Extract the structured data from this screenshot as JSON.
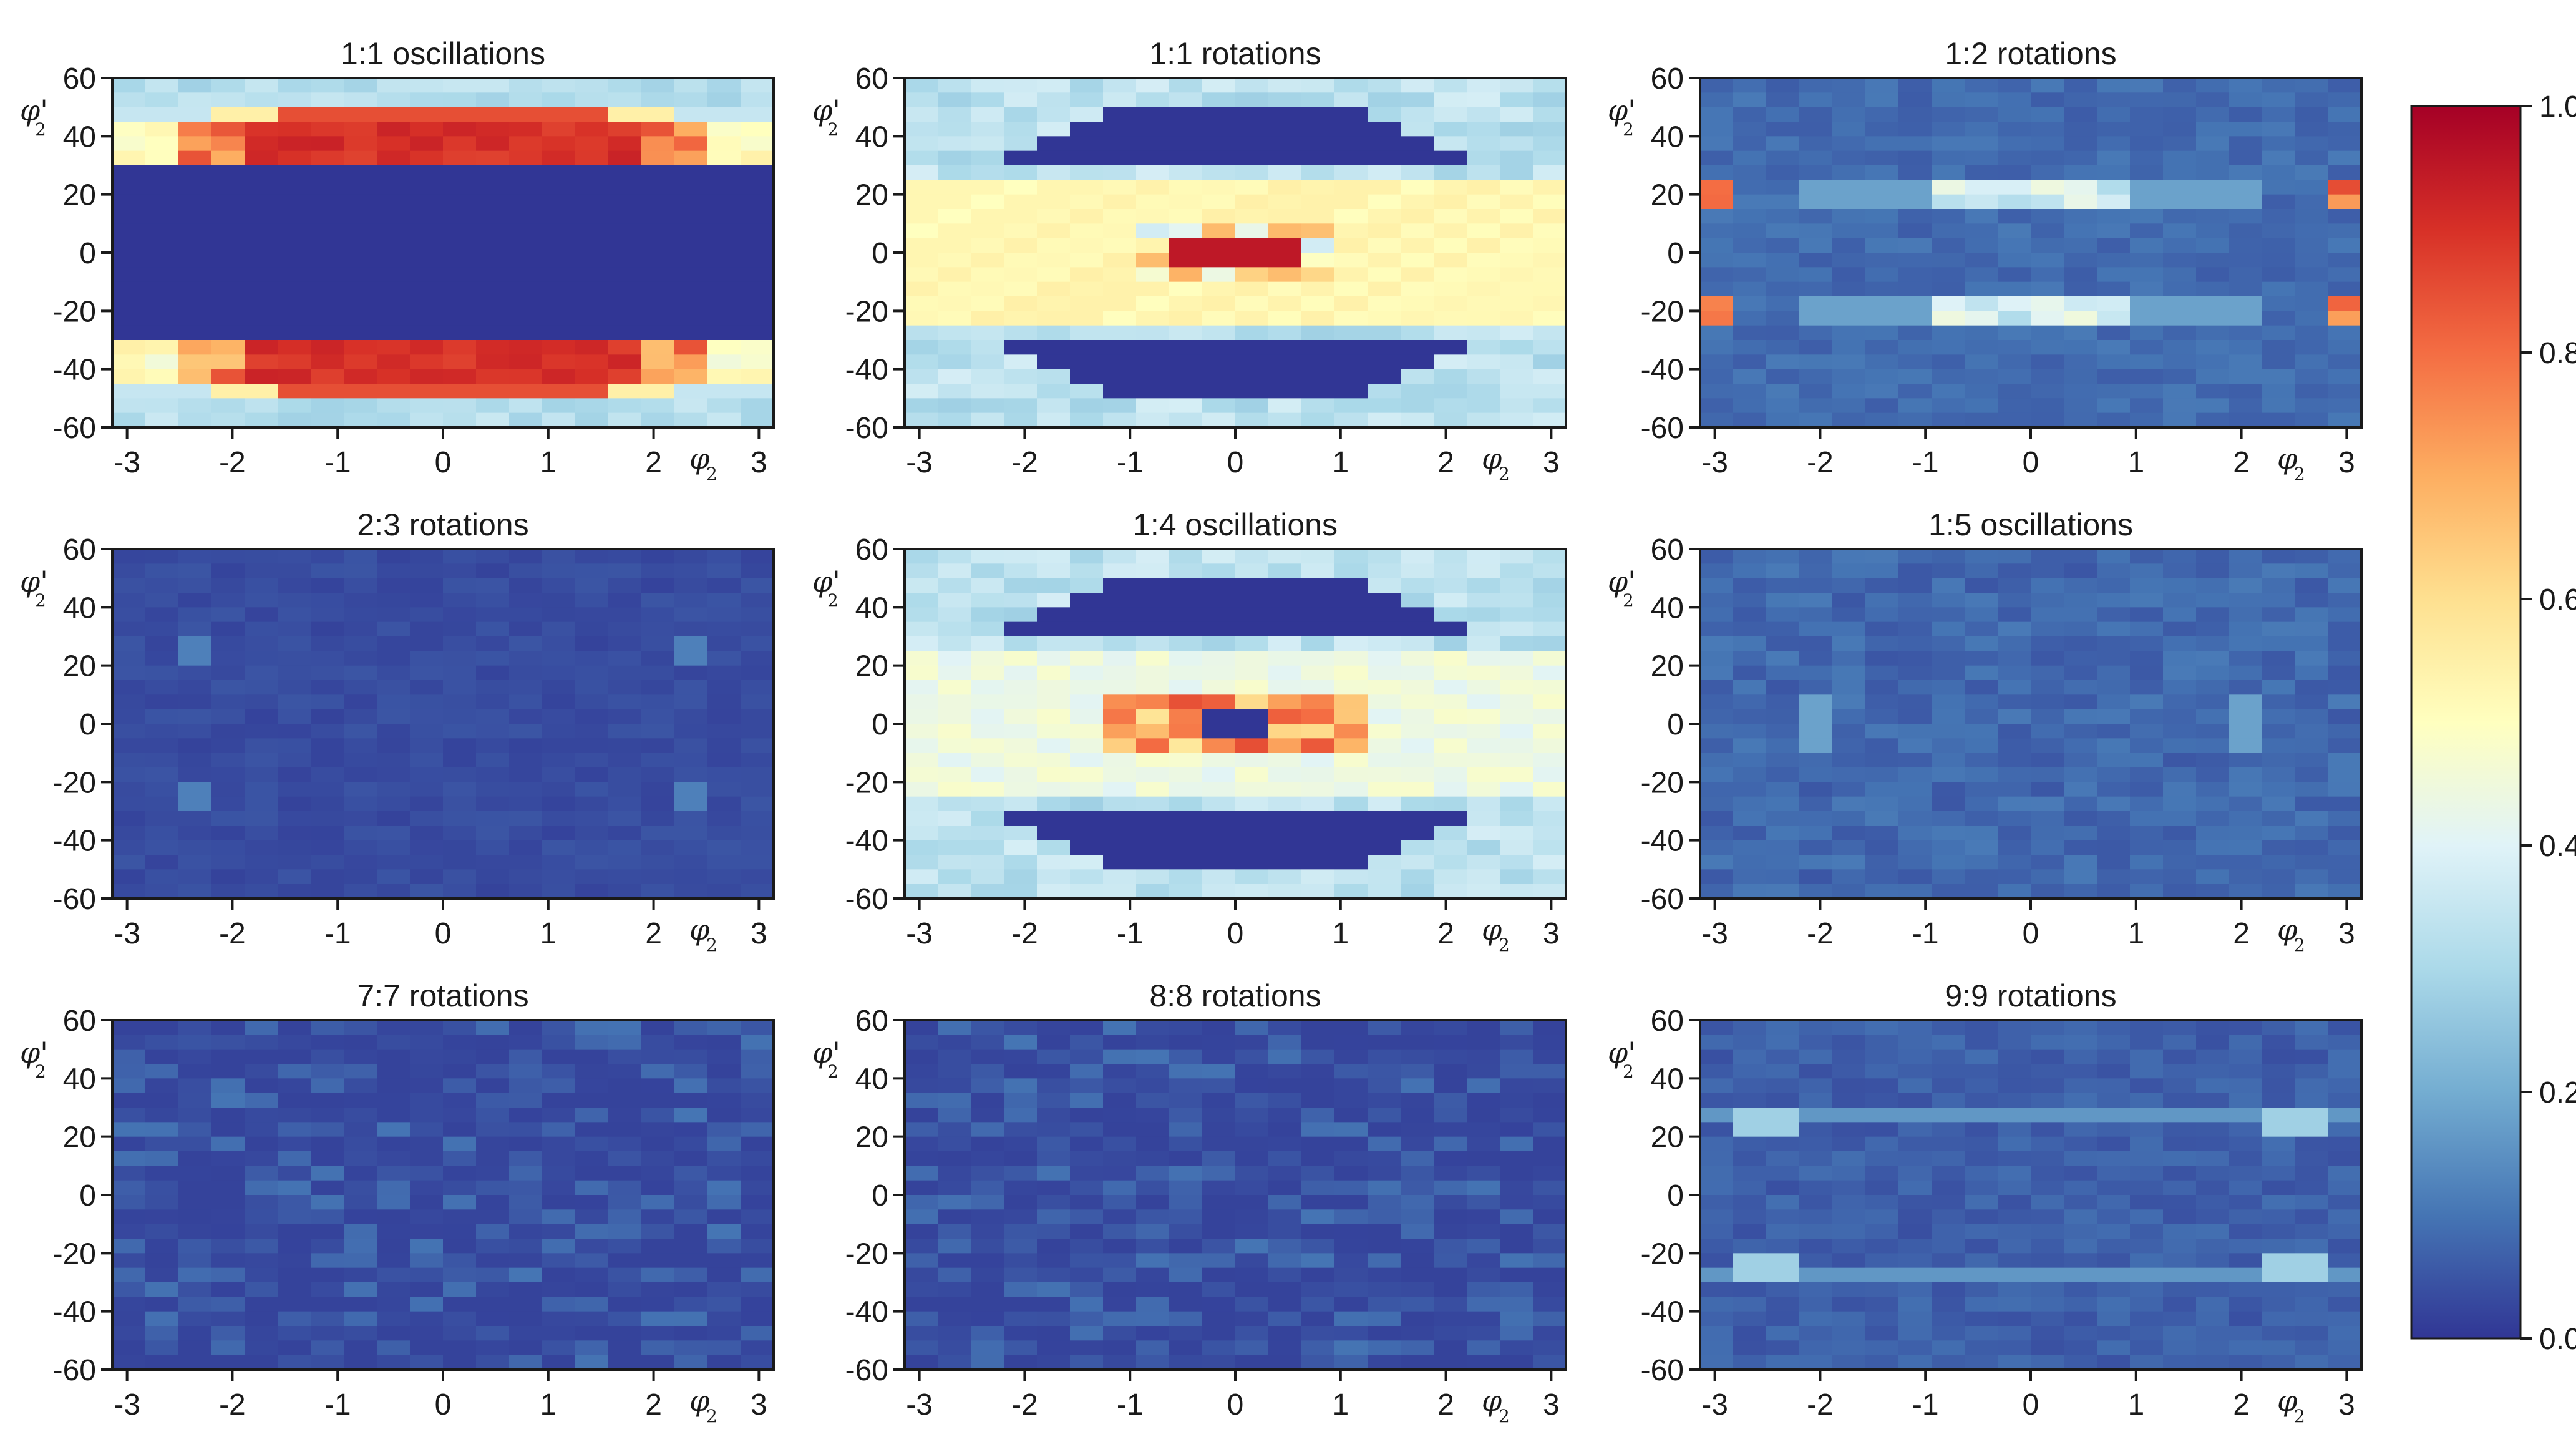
{
  "figure": {
    "colorbar": {
      "colormap": "RdYlBu_r",
      "vmin": 0.0,
      "vmax": 1.0,
      "ticks": [
        0.0,
        0.2,
        0.4,
        0.6,
        0.8,
        1.0
      ],
      "tick_labels": [
        "0.0",
        "0.2",
        "0.4",
        "0.6",
        "0.8",
        "1.0"
      ],
      "stops": [
        "#313695",
        "#4575b4",
        "#74add1",
        "#abd9e9",
        "#e0f3f8",
        "#ffffbf",
        "#fee090",
        "#fdae61",
        "#f46d43",
        "#d73027",
        "#a50026"
      ]
    },
    "axes": {
      "x_ticks": [
        -3,
        -2,
        -1,
        0,
        1,
        2,
        3
      ],
      "x_tick_labels": [
        "-3",
        "-2",
        "-1",
        "0",
        "1",
        "2",
        "3"
      ],
      "y_ticks": [
        60,
        40,
        20,
        0,
        -20,
        -40,
        -60
      ],
      "y_tick_labels": [
        "60",
        "40",
        "20",
        "0",
        "-20",
        "-40",
        "-60"
      ],
      "xlabel_symbol": "φ",
      "xlabel_subscript": "2",
      "ylabel_symbol": "φ'",
      "ylabel_subscript": "2"
    }
  },
  "chart_data": [
    {
      "type": "heatmap",
      "title": "1:1 oscillations",
      "xlabel": "φ2",
      "ylabel": "φ'2",
      "xlim": [
        -3.14,
        3.14
      ],
      "ylim": [
        -60,
        60
      ],
      "pattern": "osc11"
    },
    {
      "type": "heatmap",
      "title": "1:1 rotations",
      "xlabel": "φ2",
      "ylabel": "φ'2",
      "xlim": [
        -3.14,
        3.14
      ],
      "ylim": [
        -60,
        60
      ],
      "pattern": "rot11"
    },
    {
      "type": "heatmap",
      "title": "1:2 rotations",
      "xlabel": "φ2",
      "ylabel": "φ'2",
      "xlim": [
        -3.14,
        3.14
      ],
      "ylim": [
        -60,
        60
      ],
      "pattern": "rot12"
    },
    {
      "type": "heatmap",
      "title": "2:3 rotations",
      "xlabel": "φ2",
      "ylabel": "φ'2",
      "xlim": [
        -3.14,
        3.14
      ],
      "ylim": [
        -60,
        60
      ],
      "pattern": "rot23"
    },
    {
      "type": "heatmap",
      "title": "1:4 oscillations",
      "xlabel": "φ2",
      "ylabel": "φ'2",
      "xlim": [
        -3.14,
        3.14
      ],
      "ylim": [
        -60,
        60
      ],
      "pattern": "osc14"
    },
    {
      "type": "heatmap",
      "title": "1:5 oscillations",
      "xlabel": "φ2",
      "ylabel": "φ'2",
      "xlim": [
        -3.14,
        3.14
      ],
      "ylim": [
        -60,
        60
      ],
      "pattern": "osc15"
    },
    {
      "type": "heatmap",
      "title": "7:7 rotations",
      "xlabel": "φ2",
      "ylabel": "φ'2",
      "xlim": [
        -3.14,
        3.14
      ],
      "ylim": [
        -60,
        60
      ],
      "pattern": "rot77"
    },
    {
      "type": "heatmap",
      "title": "8:8 rotations",
      "xlabel": "φ2",
      "ylabel": "φ'2",
      "xlim": [
        -3.14,
        3.14
      ],
      "ylim": [
        -60,
        60
      ],
      "pattern": "rot88"
    },
    {
      "type": "heatmap",
      "title": "9:9 rotations",
      "xlabel": "φ2",
      "ylabel": "φ'2",
      "xlim": [
        -3.14,
        3.14
      ],
      "ylim": [
        -60,
        60
      ],
      "pattern": "rot99"
    }
  ]
}
